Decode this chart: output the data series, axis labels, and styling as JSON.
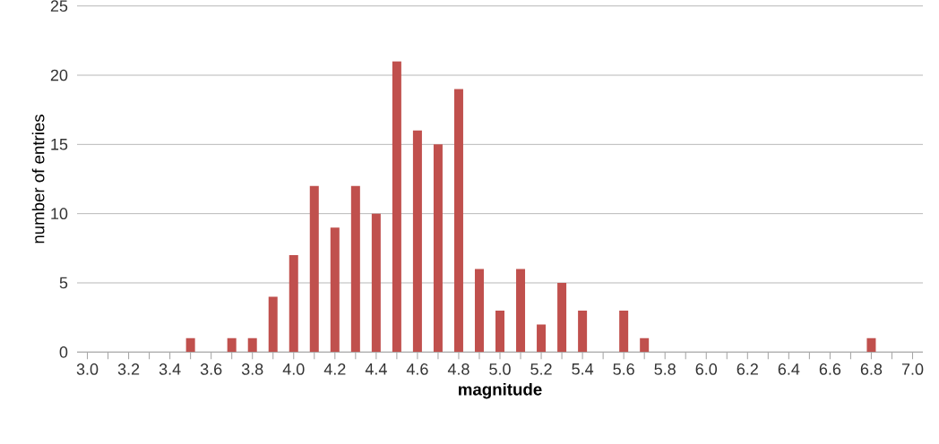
{
  "chart_data": {
    "type": "bar",
    "xlabel": "magnitude",
    "ylabel": "number of entries",
    "categories": [
      "3.0",
      null,
      "3.2",
      null,
      "3.4",
      null,
      "3.6",
      null,
      "3.8",
      null,
      "4.0",
      null,
      "4.2",
      null,
      "4.4",
      null,
      "4.6",
      null,
      "4.8",
      null,
      "5.0",
      null,
      "5.2",
      null,
      "5.4",
      null,
      "5.6",
      null,
      "5.8",
      null,
      "6.0",
      null,
      "6.2",
      null,
      "6.4",
      null,
      "6.6",
      null,
      "6.8",
      null,
      "7.0"
    ],
    "values": [
      0,
      0,
      0,
      0,
      0,
      1,
      0,
      1,
      1,
      4,
      7,
      12,
      9,
      12,
      10,
      21,
      16,
      15,
      19,
      6,
      3,
      6,
      2,
      5,
      3,
      0,
      3,
      1,
      0,
      0,
      0,
      0,
      0,
      0,
      0,
      0,
      0,
      0,
      1,
      0,
      0
    ],
    "color": "#c0504d",
    "ylim": [
      0,
      25
    ],
    "yticks": [
      0,
      5,
      10,
      15,
      20,
      25
    ],
    "grid": "y"
  }
}
